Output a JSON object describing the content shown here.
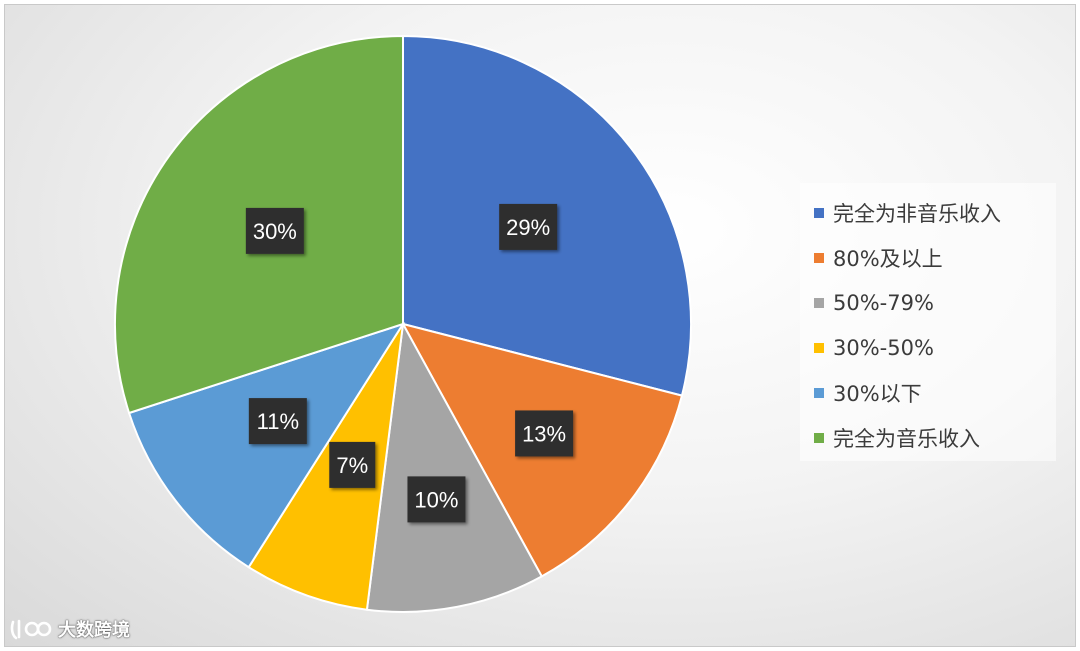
{
  "chart_data": {
    "type": "pie",
    "title": "",
    "slices": [
      {
        "label": "完全为非音乐收入",
        "value": 29,
        "display": "29%",
        "color": "#4472c4"
      },
      {
        "label": "80%及以上",
        "value": 13,
        "display": "13%",
        "color": "#ed7d31"
      },
      {
        "label": "50%-79%",
        "value": 10,
        "display": "10%",
        "color": "#a5a5a5"
      },
      {
        "label": "30%-50%",
        "value": 7,
        "display": "7%",
        "color": "#ffc000"
      },
      {
        "label": "30%以下",
        "value": 11,
        "display": "11%",
        "color": "#5b9bd5"
      },
      {
        "label": "完全为音乐收入",
        "value": 30,
        "display": "30%",
        "color": "#70ad47"
      }
    ],
    "legend_position": "right",
    "data_label_style": "dark-box-white-text"
  },
  "watermark": {
    "text": "大数跨境",
    "icon": "brand-logo-icon"
  }
}
